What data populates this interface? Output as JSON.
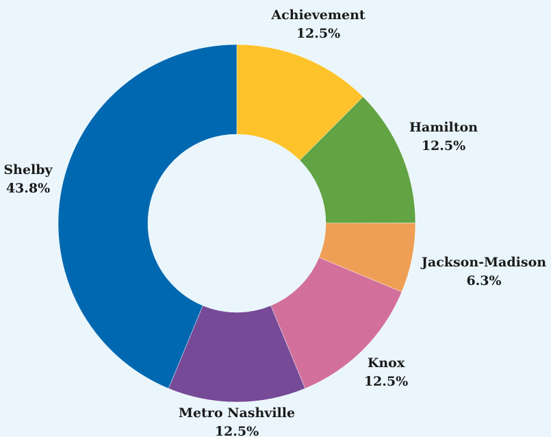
{
  "chart_data": {
    "type": "pie",
    "donut": true,
    "title": "",
    "background_color": "#eaf6fc",
    "slices": [
      {
        "label": "Achievement",
        "value": 12.5,
        "value_label": "12.5%",
        "color": "#fec22a"
      },
      {
        "label": "Hamilton",
        "value": 12.5,
        "value_label": "12.5%",
        "color": "#62a344"
      },
      {
        "label": "Jackson-Madison",
        "value": 6.3,
        "value_label": "6.3%",
        "color": "#ee9f55"
      },
      {
        "label": "Knox",
        "value": 12.5,
        "value_label": "12.5%",
        "color": "#d2709b"
      },
      {
        "label": "Metro Nashville",
        "value": 12.5,
        "value_label": "12.5%",
        "color": "#764a97"
      },
      {
        "label": "Shelby",
        "value": 43.8,
        "value_label": "43.8%",
        "color": "#0068b1"
      }
    ]
  }
}
